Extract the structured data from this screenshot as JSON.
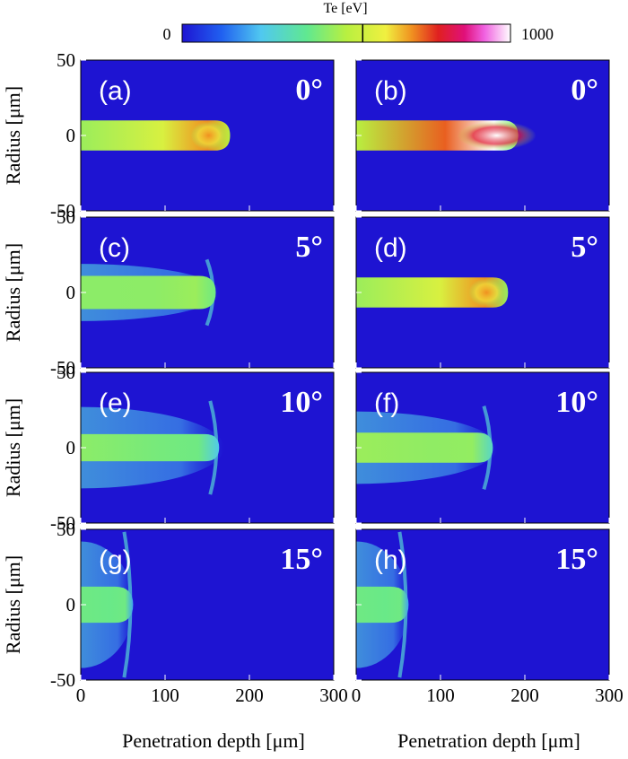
{
  "colorbar": {
    "title": "Te [eV]",
    "min_label": "0",
    "max_label": "1000",
    "range": [
      0,
      1000
    ],
    "marker_value": 550,
    "stops": [
      {
        "v": 0.0,
        "c": "#1e14d2"
      },
      {
        "v": 0.12,
        "c": "#2060f0"
      },
      {
        "v": 0.24,
        "c": "#50c8f0"
      },
      {
        "v": 0.38,
        "c": "#60e890"
      },
      {
        "v": 0.5,
        "c": "#b8f040"
      },
      {
        "v": 0.62,
        "c": "#f0f040"
      },
      {
        "v": 0.7,
        "c": "#f09020"
      },
      {
        "v": 0.78,
        "c": "#e02020"
      },
      {
        "v": 0.86,
        "c": "#e0107a"
      },
      {
        "v": 0.92,
        "c": "#f060e0"
      },
      {
        "v": 1.0,
        "c": "#ffffff"
      }
    ]
  },
  "chart_data": {
    "type": "heatmap",
    "xlabel": "Penetration depth [μm]",
    "ylabel": "Radius [μm]",
    "xlim": [
      0,
      300
    ],
    "ylim": [
      -50,
      50
    ],
    "xticks": [
      "0",
      "100",
      "200",
      "300"
    ],
    "yticks": [
      "50",
      "0",
      "-50"
    ],
    "background": "#1e14d2",
    "panels": [
      {
        "label": "(a)",
        "angle": "0°",
        "jet": {
          "length": 175,
          "halfwidth": 10,
          "spread": 0,
          "peak": 0.7,
          "base": 0.46,
          "head": 0.5
        }
      },
      {
        "label": "(b)",
        "angle": "0°",
        "jet": {
          "length": 190,
          "halfwidth": 10,
          "spread": 0,
          "peak": 1.0,
          "base": 0.5,
          "head": 0.42
        }
      },
      {
        "label": "(c)",
        "angle": "5°",
        "jet": {
          "length": 158,
          "halfwidth": 11,
          "spread": 8,
          "peak": 0.46,
          "base": 0.44,
          "head": 0.4
        }
      },
      {
        "label": "(d)",
        "angle": "5°",
        "jet": {
          "length": 178,
          "halfwidth": 10,
          "spread": 0,
          "peak": 0.7,
          "base": 0.46,
          "head": 0.45
        }
      },
      {
        "label": "(e)",
        "angle": "10°",
        "jet": {
          "length": 162,
          "halfwidth": 9,
          "spread": 18,
          "peak": 0.4,
          "base": 0.44,
          "head": 0.25
        }
      },
      {
        "label": "(f)",
        "angle": "10°",
        "jet": {
          "length": 160,
          "halfwidth": 10,
          "spread": 14,
          "peak": 0.45,
          "base": 0.46,
          "head": 0.3
        }
      },
      {
        "label": "(g)",
        "angle": "15°",
        "jet": {
          "length": 60,
          "halfwidth": 12,
          "spread": 30,
          "peak": 0.4,
          "base": 0.4,
          "head": 0.2
        }
      },
      {
        "label": "(h)",
        "angle": "15°",
        "jet": {
          "length": 60,
          "halfwidth": 12,
          "spread": 30,
          "peak": 0.4,
          "base": 0.4,
          "head": 0.2
        }
      }
    ]
  }
}
